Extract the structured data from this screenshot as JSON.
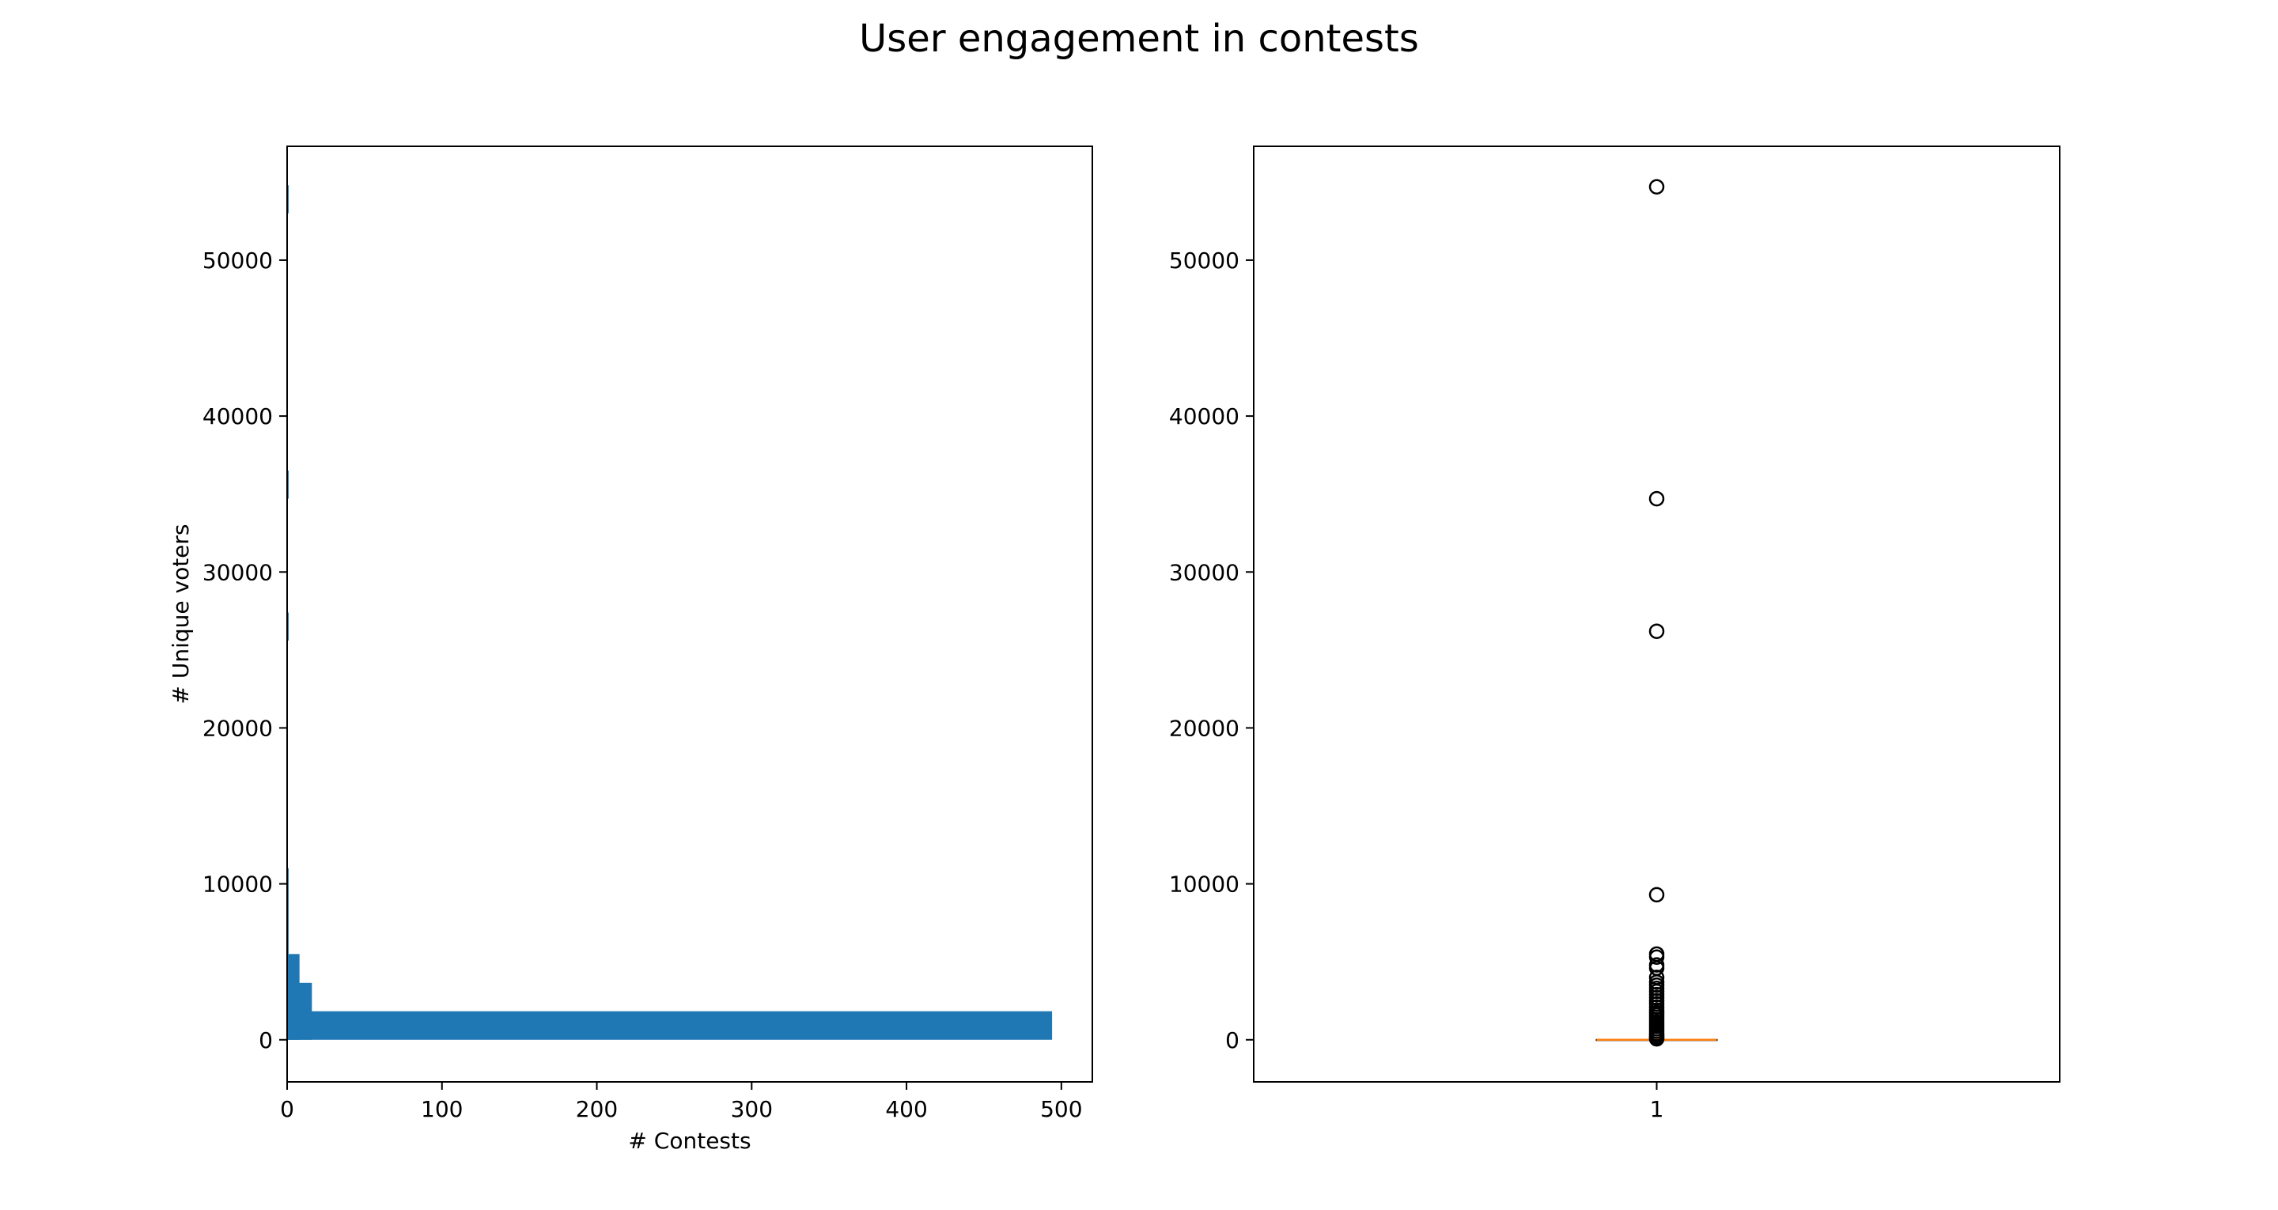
{
  "figure": {
    "title": "User engagement in contests"
  },
  "chart_data": [
    {
      "type": "bar",
      "orientation": "horizontal",
      "description_role": "histogram",
      "xlabel": "# Contests",
      "ylabel": "# Unique voters",
      "xlim": [
        0,
        520
      ],
      "ylim": [
        -2700,
        57300
      ],
      "xticks": [
        0,
        100,
        200,
        300,
        400,
        500
      ],
      "yticks": [
        0,
        10000,
        20000,
        30000,
        40000,
        50000
      ],
      "grid": false,
      "color": "#1f77b4",
      "bins": [
        {
          "y0": 0,
          "y1": 5500,
          "count": 8
        },
        {
          "y0": 0,
          "y1": 3650,
          "count": 16
        },
        {
          "y0": 0,
          "y1": 1830,
          "count": 494
        },
        {
          "y0": 5500,
          "y1": 11000,
          "count": 1
        },
        {
          "y0": 25600,
          "y1": 27400,
          "count": 1
        },
        {
          "y0": 34700,
          "y1": 36500,
          "count": 1
        },
        {
          "y0": 53000,
          "y1": 54800,
          "count": 1
        }
      ]
    },
    {
      "type": "box",
      "xticks": [
        "1"
      ],
      "ylim": [
        -2700,
        57300
      ],
      "yticks": [
        0,
        10000,
        20000,
        30000,
        40000,
        50000
      ],
      "grid": false,
      "median_color": "#ff7f0e",
      "box": {
        "q1": 0,
        "median": 0,
        "q3": 0,
        "whisker_low": 0,
        "whisker_high": 0
      },
      "outliers": [
        54700,
        34700,
        26200,
        9300,
        5500,
        5300,
        4800,
        4600,
        4000,
        3700,
        3500,
        3300,
        3100,
        2900,
        2700,
        2500,
        2300,
        2100,
        1900,
        1750,
        1600,
        1450,
        1300,
        1150,
        1000,
        850,
        700,
        550,
        400,
        300,
        200,
        120,
        60
      ]
    }
  ]
}
